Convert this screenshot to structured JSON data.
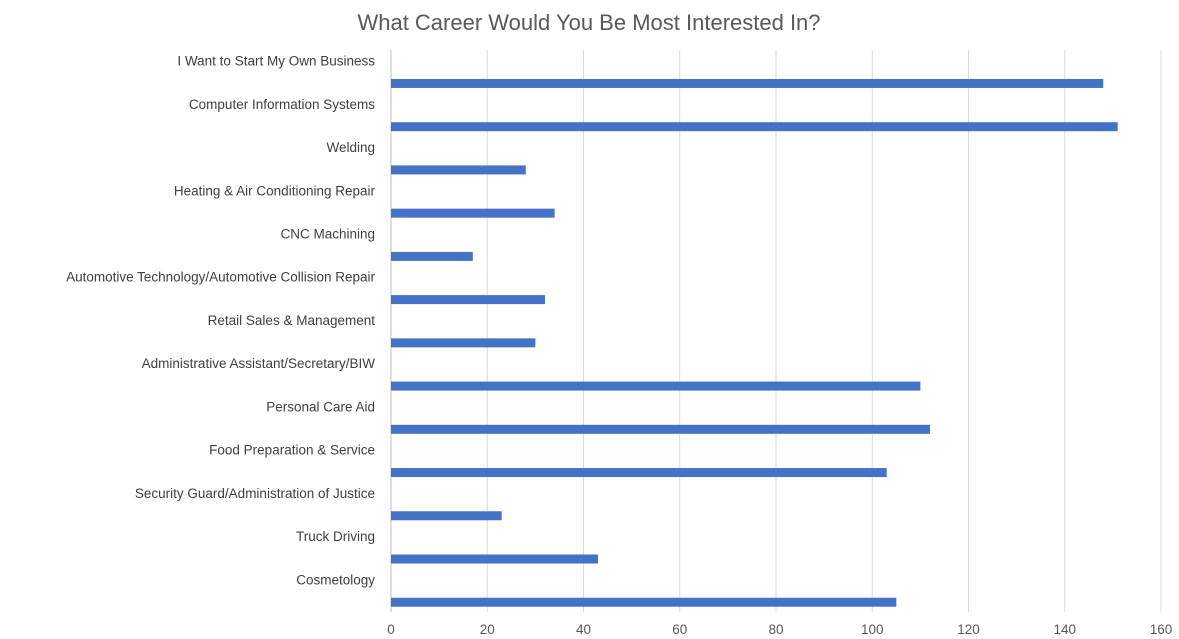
{
  "chart_data": {
    "type": "bar",
    "orientation": "horizontal",
    "title": "What Career Would You Be Most Interested In?",
    "xlabel": "",
    "ylabel": "",
    "xlim": [
      0,
      160
    ],
    "x_ticks": [
      0,
      20,
      40,
      60,
      80,
      100,
      120,
      140,
      160
    ],
    "grid": "vertical",
    "legend": "none",
    "bar_color": "#4472C4",
    "categories": [
      "I Want to Start My Own Business",
      "Computer Information Systems",
      "Welding",
      "Heating & Air Conditioning Repair",
      "CNC Machining",
      "Automotive Technology/Automotive Collision Repair",
      "Retail Sales & Management",
      "Administrative Assistant/Secretary/BIW",
      "Personal Care Aid",
      "Food Preparation & Service",
      "Security Guard/Administration of Justice",
      "Truck Driving",
      "Cosmetology"
    ],
    "values": [
      148,
      151,
      28,
      34,
      17,
      32,
      30,
      110,
      112,
      103,
      23,
      43,
      105
    ]
  }
}
